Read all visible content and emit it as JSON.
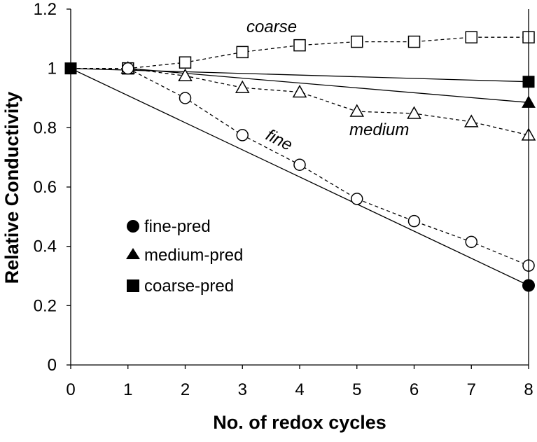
{
  "chart_data": {
    "type": "line",
    "title": "",
    "xlabel": "No. of redox cycles",
    "ylabel": "Relative Conductivity",
    "xlim": [
      0,
      8
    ],
    "ylim": [
      0,
      1.2
    ],
    "x_ticks": [
      "0",
      "1",
      "2",
      "3",
      "4",
      "5",
      "6",
      "7",
      "8"
    ],
    "y_ticks": [
      "0",
      "0.2",
      "0.4",
      "0.6",
      "0.8",
      "1",
      "1.2"
    ],
    "grid": false,
    "series": [
      {
        "name": "coarse",
        "kind": "measured",
        "marker": "open-square",
        "line_style": "dashed",
        "x": [
          0,
          1,
          2,
          3,
          4,
          5,
          6,
          7,
          8
        ],
        "values": [
          1.0,
          1.0,
          1.02,
          1.055,
          1.078,
          1.09,
          1.09,
          1.105,
          1.105
        ],
        "annotation": "coarse"
      },
      {
        "name": "medium",
        "kind": "measured",
        "marker": "open-triangle",
        "line_style": "dashed",
        "x": [
          0,
          1,
          2,
          3,
          4,
          5,
          6,
          7,
          8
        ],
        "values": [
          1.0,
          1.0,
          0.975,
          0.935,
          0.92,
          0.855,
          0.848,
          0.82,
          0.775
        ],
        "annotation": "medium"
      },
      {
        "name": "fine",
        "kind": "measured",
        "marker": "open-circle",
        "line_style": "dashed",
        "x": [
          0,
          1,
          2,
          3,
          4,
          5,
          6,
          7,
          8
        ],
        "values": [
          1.0,
          1.0,
          0.9,
          0.775,
          0.675,
          0.56,
          0.485,
          0.415,
          0.335
        ],
        "annotation": "fine"
      },
      {
        "name": "coarse-pred",
        "kind": "predicted",
        "marker": "filled-square",
        "line_style": "solid",
        "x": [
          0,
          8
        ],
        "values": [
          1.0,
          0.955
        ]
      },
      {
        "name": "medium-pred",
        "kind": "predicted",
        "marker": "filled-triangle",
        "line_style": "solid",
        "x": [
          1,
          8
        ],
        "values": [
          1.0,
          0.885
        ]
      },
      {
        "name": "fine-pred",
        "kind": "predicted",
        "marker": "filled-circle",
        "line_style": "solid",
        "x": [
          0,
          8
        ],
        "values": [
          1.0,
          0.268
        ]
      }
    ],
    "legend": {
      "placement": "lower-left",
      "entries": [
        {
          "label": "fine-pred",
          "marker": "filled-circle"
        },
        {
          "label": "medium-pred",
          "marker": "filled-triangle"
        },
        {
          "label": "coarse-pred",
          "marker": "filled-square"
        }
      ]
    },
    "colors": {
      "line": "#000000",
      "marker_fill_open": "#ffffff",
      "marker_fill_filled": "#000000",
      "background": "#ffffff"
    }
  }
}
